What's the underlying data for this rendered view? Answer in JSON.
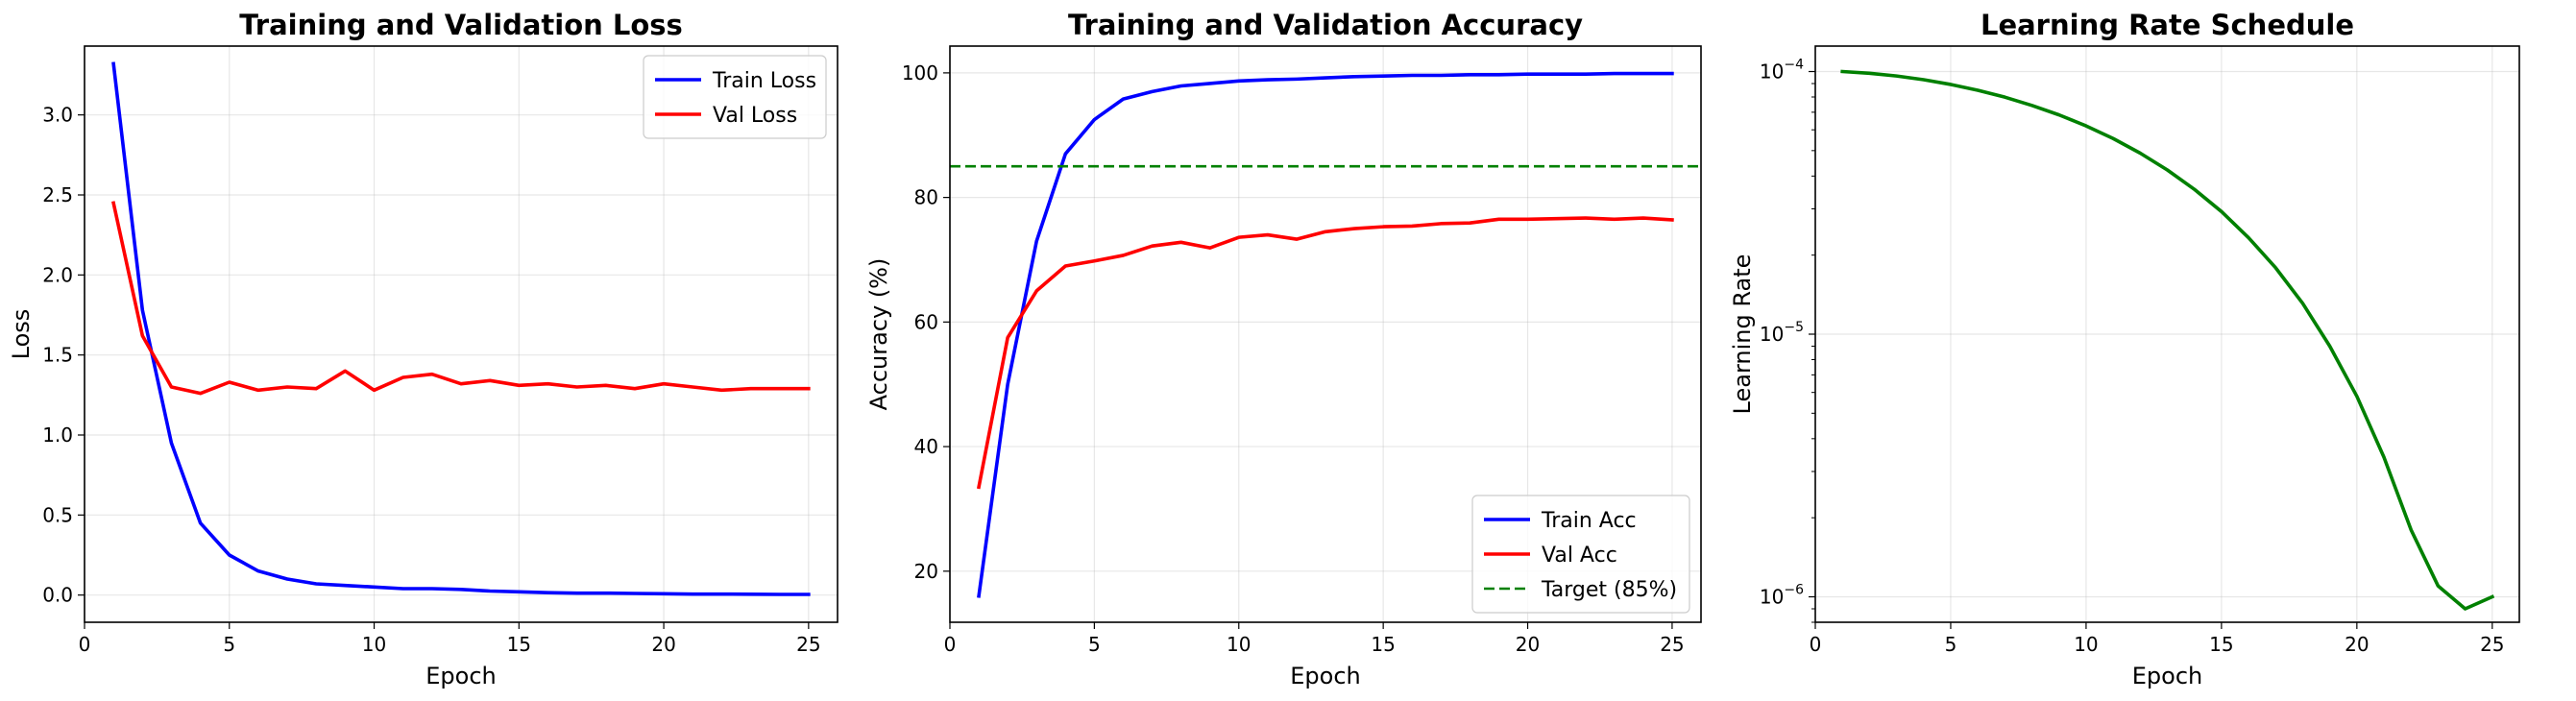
{
  "chart_data": [
    {
      "type": "line",
      "title": "Training and Validation Loss",
      "xlabel": "Epoch",
      "ylabel": "Loss",
      "xlim": [
        0,
        26
      ],
      "ylim": [
        -0.17,
        3.43
      ],
      "xticks": [
        0,
        5,
        10,
        15,
        20,
        25
      ],
      "yticks": [
        0.0,
        0.5,
        1.0,
        1.5,
        2.0,
        2.5,
        3.0
      ],
      "ytick_labels": [
        "0.0",
        "0.5",
        "1.0",
        "1.5",
        "2.0",
        "2.5",
        "3.0"
      ],
      "grid": true,
      "legend_position": "upper right",
      "x": [
        1,
        2,
        3,
        4,
        5,
        6,
        7,
        8,
        9,
        10,
        11,
        12,
        13,
        14,
        15,
        16,
        17,
        18,
        19,
        20,
        21,
        22,
        23,
        24,
        25
      ],
      "series": [
        {
          "name": "Train Loss",
          "color": "#0000ff",
          "dash": "solid",
          "values": [
            3.32,
            1.78,
            0.95,
            0.45,
            0.25,
            0.15,
            0.1,
            0.07,
            0.06,
            0.05,
            0.04,
            0.04,
            0.035,
            0.025,
            0.02,
            0.015,
            0.012,
            0.012,
            0.01,
            0.008,
            0.006,
            0.006,
            0.005,
            0.004,
            0.004
          ]
        },
        {
          "name": "Val Loss",
          "color": "#ff0000",
          "dash": "solid",
          "values": [
            2.45,
            1.62,
            1.3,
            1.26,
            1.33,
            1.28,
            1.3,
            1.29,
            1.4,
            1.28,
            1.36,
            1.38,
            1.32,
            1.34,
            1.31,
            1.32,
            1.3,
            1.31,
            1.29,
            1.32,
            1.3,
            1.28,
            1.29,
            1.29,
            1.29
          ]
        }
      ]
    },
    {
      "type": "line",
      "title": "Training and Validation Accuracy",
      "xlabel": "Epoch",
      "ylabel": "Accuracy (%)",
      "xlim": [
        0,
        26
      ],
      "ylim": [
        11.8,
        104.3
      ],
      "xticks": [
        0,
        5,
        10,
        15,
        20,
        25
      ],
      "yticks": [
        20,
        40,
        60,
        80,
        100
      ],
      "ytick_labels": [
        "20",
        "40",
        "60",
        "80",
        "100"
      ],
      "grid": true,
      "legend_position": "lower right",
      "x": [
        1,
        2,
        3,
        4,
        5,
        6,
        7,
        8,
        9,
        10,
        11,
        12,
        13,
        14,
        15,
        16,
        17,
        18,
        19,
        20,
        21,
        22,
        23,
        24,
        25
      ],
      "series": [
        {
          "name": "Train Acc",
          "color": "#0000ff",
          "dash": "solid",
          "values": [
            16.0,
            50.0,
            73.0,
            87.0,
            92.5,
            95.8,
            97.0,
            97.9,
            98.3,
            98.7,
            98.9,
            99.0,
            99.2,
            99.4,
            99.5,
            99.6,
            99.6,
            99.7,
            99.7,
            99.8,
            99.8,
            99.8,
            99.9,
            99.9,
            99.9
          ]
        },
        {
          "name": "Val Acc",
          "color": "#ff0000",
          "dash": "solid",
          "values": [
            33.5,
            57.5,
            65.0,
            69.0,
            69.8,
            70.7,
            72.2,
            72.8,
            71.9,
            73.6,
            74.0,
            73.3,
            74.5,
            75.0,
            75.3,
            75.4,
            75.8,
            75.9,
            76.5,
            76.5,
            76.6,
            76.7,
            76.5,
            76.7,
            76.4
          ]
        },
        {
          "name": "Target (85%)",
          "color": "#008000",
          "dash": "dashed",
          "hline": 85
        }
      ]
    },
    {
      "type": "line",
      "title": "Learning Rate Schedule",
      "xlabel": "Epoch",
      "ylabel": "Learning Rate",
      "yscale": "log",
      "xlim": [
        0,
        26
      ],
      "ylim": [
        8e-07,
        0.000125
      ],
      "xticks": [
        0,
        5,
        10,
        15,
        20,
        25
      ],
      "yticks": [
        1e-06,
        1e-05,
        0.0001
      ],
      "ytick_labels": [
        {
          "base": "10",
          "exp": "−6"
        },
        {
          "base": "10",
          "exp": "−5"
        },
        {
          "base": "10",
          "exp": "−4"
        }
      ],
      "grid": true,
      "x": [
        1,
        2,
        3,
        4,
        5,
        6,
        7,
        8,
        9,
        10,
        11,
        12,
        13,
        14,
        15,
        16,
        17,
        18,
        19,
        20,
        21,
        22,
        23,
        24,
        25
      ],
      "series": [
        {
          "name": "",
          "color": "#008000",
          "dash": "solid",
          "values": [
            0.0001,
            9.85e-05,
            9.62e-05,
            9.31e-05,
            8.93e-05,
            8.49e-05,
            7.99e-05,
            7.43e-05,
            6.84e-05,
            6.21e-05,
            5.56e-05,
            4.89e-05,
            4.22e-05,
            3.56e-05,
            2.93e-05,
            2.33e-05,
            1.79e-05,
            1.31e-05,
            9e-06,
            5.8e-06,
            3.4e-06,
            1.8e-06,
            1.1e-06,
            9e-07,
            1e-06
          ]
        }
      ]
    }
  ]
}
